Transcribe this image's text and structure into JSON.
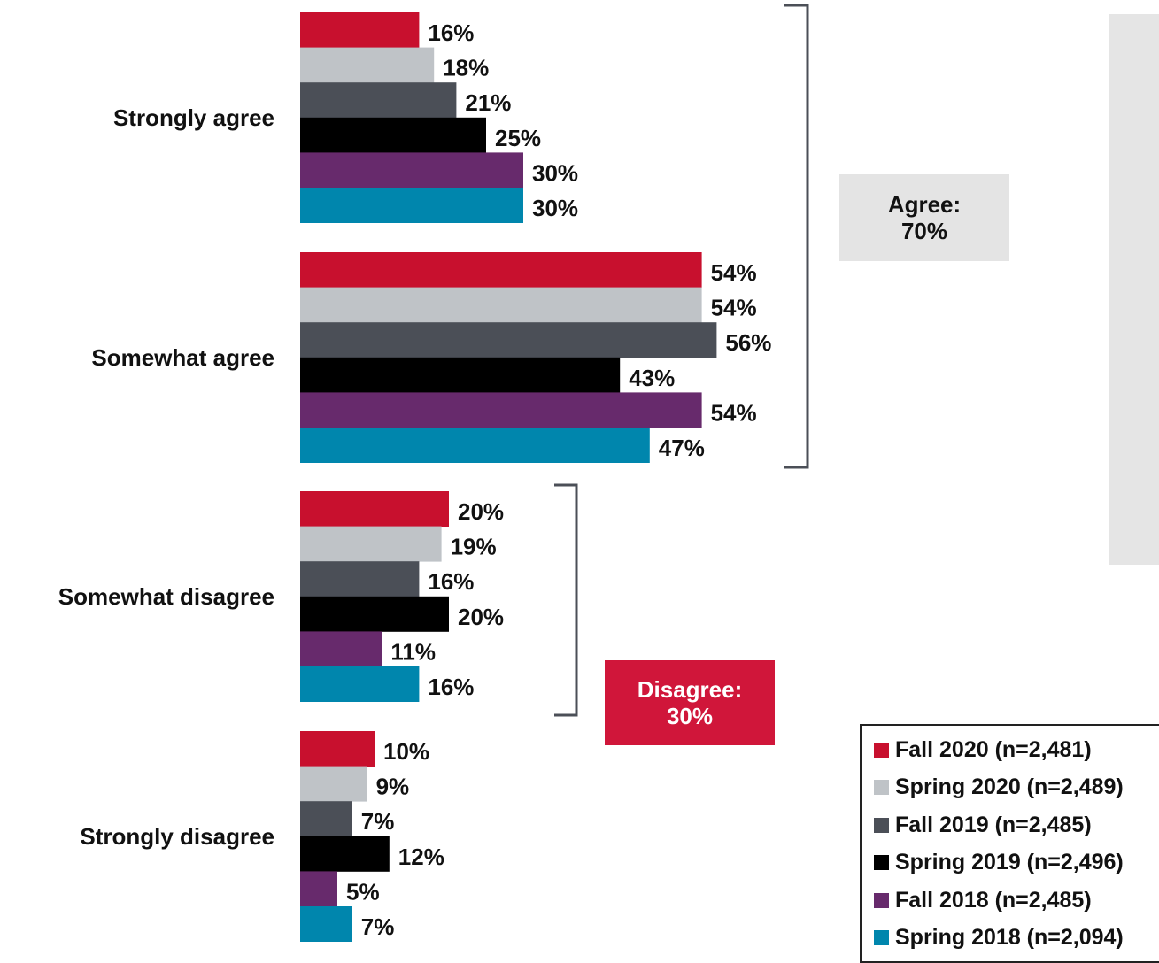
{
  "chart_data": {
    "type": "bar",
    "orientation": "horizontal",
    "categories": [
      "Strongly agree",
      "Somewhat agree",
      "Somewhat disagree",
      "Strongly disagree"
    ],
    "series": [
      {
        "name": "Fall 2020 (n=2,481)",
        "color": "#c8102e",
        "values": [
          16,
          54,
          20,
          10
        ]
      },
      {
        "name": "Spring 2020 (n=2,489)",
        "color": "#bfc3c7",
        "values": [
          18,
          54,
          19,
          9
        ]
      },
      {
        "name": "Fall 2019 (n=2,485)",
        "color": "#4b4f57",
        "values": [
          21,
          56,
          16,
          7
        ]
      },
      {
        "name": "Spring 2019 (n=2,496)",
        "color": "#000000",
        "values": [
          25,
          43,
          20,
          12
        ]
      },
      {
        "name": "Fall 2018 (n=2,485)",
        "color": "#672a6c",
        "values": [
          30,
          54,
          11,
          5
        ]
      },
      {
        "name": "Spring 2018 (n=2,094)",
        "color": "#0086ad",
        "values": [
          30,
          47,
          16,
          7
        ]
      }
    ],
    "value_suffix": "%",
    "legend_position": "bottom-right",
    "summaries": {
      "agree": {
        "label": "Agree:",
        "value": "70%"
      },
      "disagree": {
        "label": "Disagree:",
        "value": "30%"
      }
    },
    "bracket_color": "#4b4f57"
  }
}
